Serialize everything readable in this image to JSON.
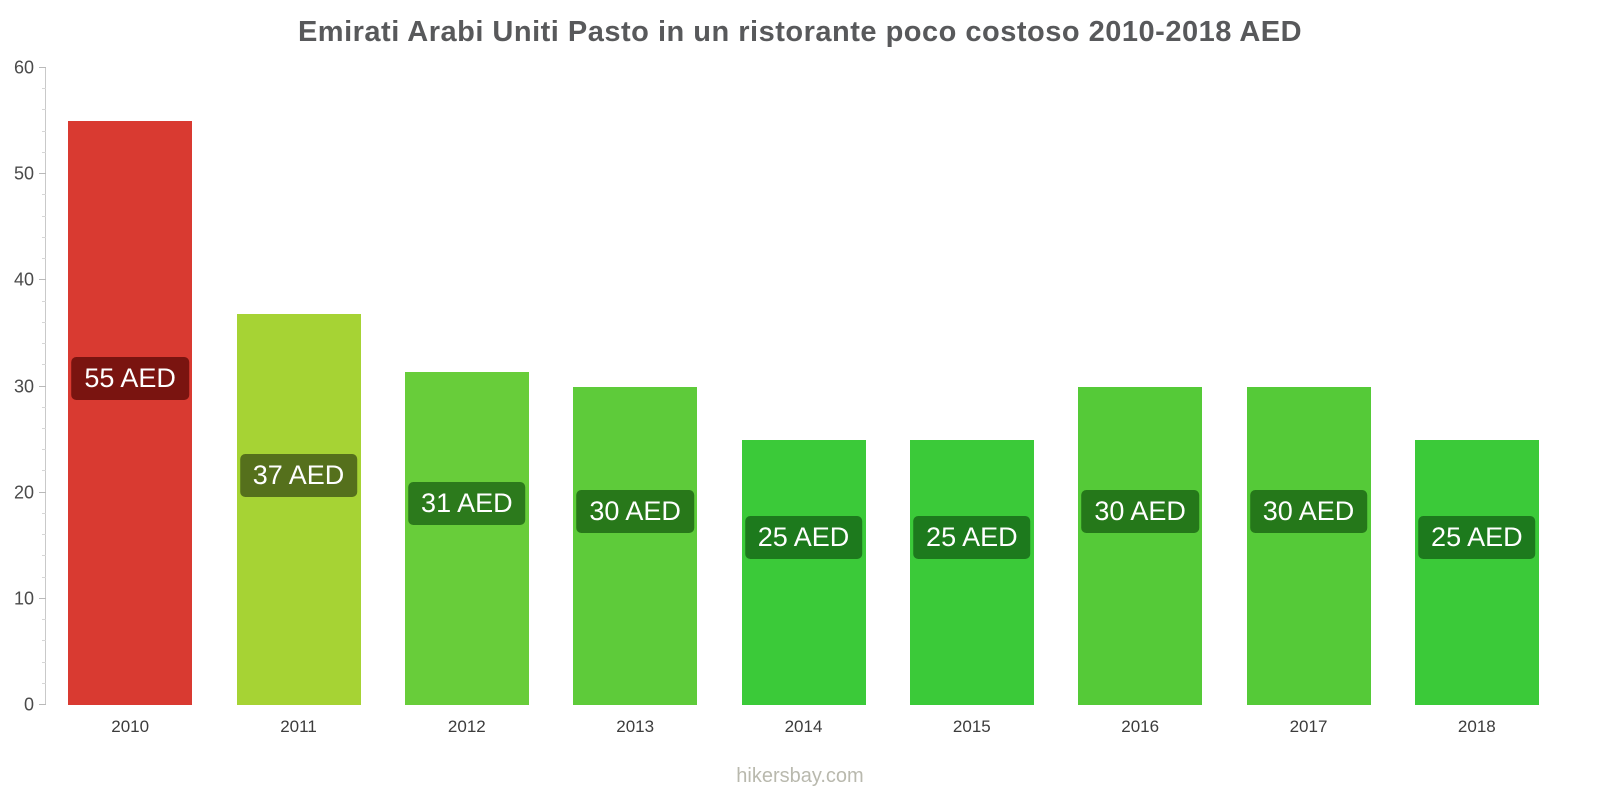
{
  "footer": "hikersbay.com",
  "chart_data": {
    "type": "bar",
    "title": "Emirati Arabi Uniti Pasto in un ristorante poco costoso 2010-2018 AED",
    "xlabel": "",
    "ylabel": "",
    "categories": [
      "2010",
      "2011",
      "2012",
      "2013",
      "2014",
      "2015",
      "2016",
      "2017",
      "2018"
    ],
    "values": [
      55,
      36.8,
      31.4,
      30,
      25,
      25,
      30,
      30,
      25
    ],
    "bar_labels": [
      "55 AED",
      "37 AED",
      "31 AED",
      "30 AED",
      "25 AED",
      "25 AED",
      "30 AED",
      "30 AED",
      "25 AED"
    ],
    "bar_colors": [
      "#d93a31",
      "#a6d334",
      "#68cd3a",
      "#5ecb3a",
      "#3bca39",
      "#3bca39",
      "#55ca38",
      "#55ca38",
      "#3bca39"
    ],
    "label_colors": [
      "#7a1410",
      "#55701c",
      "#2c7a1c",
      "#28781a",
      "#1d7a1d",
      "#1d7a1d",
      "#25781a",
      "#25781a",
      "#1d7a1d"
    ],
    "ylim": [
      0,
      60
    ],
    "yticks": [
      0,
      10,
      20,
      30,
      40,
      50,
      60
    ],
    "minor_tick": 2,
    "grid": false,
    "legend": false,
    "currency": "AED"
  }
}
